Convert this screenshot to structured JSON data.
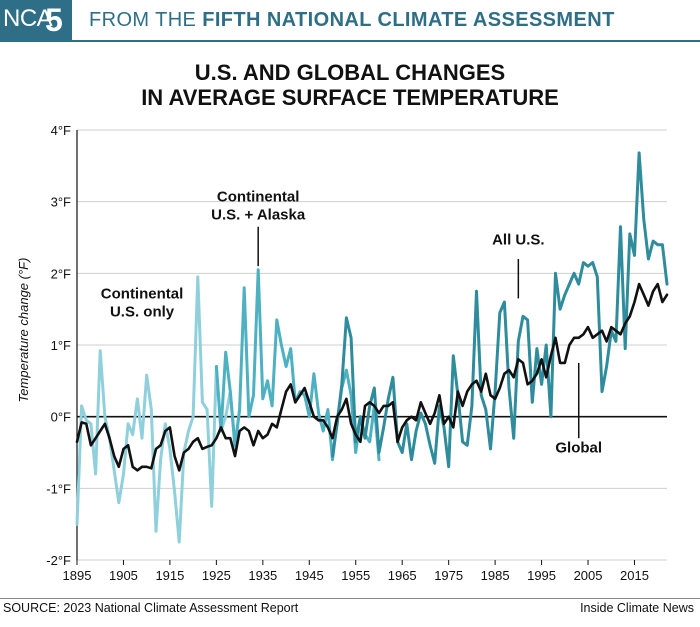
{
  "banner": {
    "nca_text": "NCA",
    "nca_number": "5",
    "prefix": "FROM THE ",
    "emphasis": "FIFTH NATIONAL CLIMATE ASSESSMENT",
    "color": "#2e6f87"
  },
  "title_line1": "U.S. AND GLOBAL CHANGES",
  "title_line2": "IN AVERAGE SURFACE TEMPERATURE",
  "footer": {
    "source": "SOURCE: 2023 National Climate Assessment Report",
    "credit": "Inside Climate News"
  },
  "chart_data": {
    "type": "line",
    "ylabel": "Temperature change (°F)",
    "xlabel": "",
    "xlim": [
      1895,
      2022
    ],
    "ylim": [
      -2,
      4
    ],
    "grid": true,
    "x_ticks": [
      1895,
      1905,
      1915,
      1925,
      1935,
      1945,
      1955,
      1965,
      1975,
      1985,
      1995,
      2005,
      2015
    ],
    "x_tick_labels": [
      "1895",
      "1905",
      "1915",
      "1925",
      "1935",
      "1945",
      "1955",
      "1965",
      "1975",
      "1985",
      "1995",
      "2005",
      "2015"
    ],
    "y_ticks": [
      -2,
      -1,
      0,
      1,
      2,
      3,
      4
    ],
    "y_tick_labels": [
      "-2°F",
      "-1°F",
      "0°F",
      "1°F",
      "2°F",
      "3°F",
      "4°F"
    ],
    "annotations": [
      {
        "text": [
          "Continental",
          "U.S. only"
        ],
        "x": 1909,
        "y": 1.65
      },
      {
        "text": [
          "Continental",
          "U.S. + Alaska"
        ],
        "x": 1934,
        "y": 3.0,
        "pointer_from": 2.65,
        "pointer_to": 2.1
      },
      {
        "text": [
          "All U.S."
        ],
        "x": 1990,
        "y": 2.4,
        "pointer_from": 2.2,
        "pointer_to": 1.65
      },
      {
        "text": [
          "Global"
        ],
        "x": 2003,
        "y": -0.5,
        "pointer_from": 0.75,
        "pointer_to": -0.3
      }
    ],
    "series": [
      {
        "name": "Continental U.S. only",
        "color": "#8fd0dc",
        "x": [
          1895,
          1896,
          1897,
          1898,
          1899,
          1900,
          1901,
          1902,
          1903,
          1904,
          1905,
          1906,
          1907,
          1908,
          1909,
          1910,
          1911,
          1912,
          1913,
          1914,
          1915,
          1916,
          1917,
          1918,
          1919,
          1920,
          1921,
          1922,
          1923,
          1924,
          1925,
          1926,
          1927,
          1928,
          1929,
          1930
        ],
        "values": [
          -1.5,
          0.15,
          -0.05,
          -0.1,
          -0.8,
          0.92,
          0.0,
          -0.3,
          -0.75,
          -1.2,
          -0.8,
          -0.1,
          -0.25,
          0.25,
          -0.3,
          0.58,
          0.1,
          -1.6,
          -0.6,
          -0.1,
          -0.45,
          -1.05,
          -1.75,
          -0.5,
          -0.2,
          0.0,
          1.95,
          0.2,
          0.1,
          -1.25,
          0.7,
          -0.2,
          0.0,
          0.35,
          -0.45,
          0.1
        ]
      },
      {
        "name": "Continental U.S. + Alaska",
        "color": "#4db1c2",
        "x": [
          1925,
          1926,
          1927,
          1928,
          1929,
          1930,
          1931,
          1932,
          1933,
          1934,
          1935,
          1936,
          1937,
          1938,
          1939,
          1940,
          1941,
          1942,
          1943,
          1944,
          1945,
          1946,
          1947,
          1948,
          1949,
          1950,
          1951,
          1952,
          1953,
          1954,
          1955,
          1956,
          1957,
          1958,
          1959,
          1960
        ],
        "values": [
          0.7,
          -0.2,
          0.9,
          0.35,
          -0.4,
          0.1,
          1.8,
          0.0,
          0.3,
          2.05,
          0.25,
          0.5,
          0.15,
          1.35,
          1.0,
          0.7,
          0.95,
          0.2,
          0.35,
          0.3,
          0.0,
          0.6,
          0.05,
          -0.2,
          0.1,
          -0.6,
          -0.05,
          0.4,
          0.65,
          0.3,
          -0.5,
          0.0,
          -0.25,
          -0.35,
          0.15,
          -0.6
        ]
      },
      {
        "name": "All U.S.",
        "color": "#2e8c9c",
        "x": [
          1950,
          1951,
          1952,
          1953,
          1954,
          1955,
          1956,
          1957,
          1958,
          1959,
          1960,
          1961,
          1962,
          1963,
          1964,
          1965,
          1966,
          1967,
          1968,
          1969,
          1970,
          1971,
          1972,
          1973,
          1974,
          1975,
          1976,
          1977,
          1978,
          1979,
          1980,
          1981,
          1982,
          1983,
          1984,
          1985,
          1986,
          1987,
          1988,
          1989,
          1990,
          1991,
          1992,
          1993,
          1994,
          1995,
          1996,
          1997,
          1998,
          1999,
          2000,
          2001,
          2002,
          2003,
          2004,
          2005,
          2006,
          2007,
          2008,
          2009,
          2010,
          2011,
          2012,
          2013,
          2014,
          2015,
          2016,
          2017,
          2018,
          2019,
          2020,
          2021,
          2022
        ],
        "values": [
          -0.55,
          -0.1,
          0.45,
          1.38,
          1.1,
          -0.35,
          0.0,
          -0.3,
          0.15,
          0.4,
          -0.5,
          -0.15,
          0.25,
          0.55,
          -0.35,
          -0.5,
          -0.1,
          -0.6,
          -0.2,
          0.05,
          -0.1,
          -0.4,
          -0.65,
          0.15,
          -0.15,
          -0.7,
          0.85,
          0.3,
          -0.35,
          -0.4,
          0.15,
          1.75,
          0.3,
          0.1,
          -0.45,
          0.35,
          1.45,
          1.6,
          0.4,
          -0.3,
          1.05,
          1.4,
          1.35,
          0.2,
          0.95,
          0.45,
          1.0,
          0.0,
          2.0,
          1.5,
          1.7,
          1.85,
          2.0,
          1.85,
          2.15,
          2.1,
          2.15,
          1.95,
          0.35,
          0.7,
          1.2,
          1.05,
          2.65,
          0.95,
          2.55,
          2.25,
          3.68,
          2.75,
          2.2,
          2.45,
          2.4,
          2.4,
          1.85
        ]
      },
      {
        "name": "Global",
        "color": "#111111",
        "x": [
          1895,
          1896,
          1897,
          1898,
          1899,
          1900,
          1901,
          1902,
          1903,
          1904,
          1905,
          1906,
          1907,
          1908,
          1909,
          1910,
          1911,
          1912,
          1913,
          1914,
          1915,
          1916,
          1917,
          1918,
          1919,
          1920,
          1921,
          1922,
          1923,
          1924,
          1925,
          1926,
          1927,
          1928,
          1929,
          1930,
          1931,
          1932,
          1933,
          1934,
          1935,
          1936,
          1937,
          1938,
          1939,
          1940,
          1941,
          1942,
          1943,
          1944,
          1945,
          1946,
          1947,
          1948,
          1949,
          1950,
          1951,
          1952,
          1953,
          1954,
          1955,
          1956,
          1957,
          1958,
          1959,
          1960,
          1961,
          1962,
          1963,
          1964,
          1965,
          1966,
          1967,
          1968,
          1969,
          1970,
          1971,
          1972,
          1973,
          1974,
          1975,
          1976,
          1977,
          1978,
          1979,
          1980,
          1981,
          1982,
          1983,
          1984,
          1985,
          1986,
          1987,
          1988,
          1989,
          1990,
          1991,
          1992,
          1993,
          1994,
          1995,
          1996,
          1997,
          1998,
          1999,
          2000,
          2001,
          2002,
          2003,
          2004,
          2005,
          2006,
          2007,
          2008,
          2009,
          2010,
          2011,
          2012,
          2013,
          2014,
          2015,
          2016,
          2017,
          2018,
          2019,
          2020,
          2021,
          2022
        ],
        "values": [
          -0.35,
          -0.08,
          -0.1,
          -0.4,
          -0.3,
          -0.2,
          -0.1,
          -0.3,
          -0.55,
          -0.7,
          -0.45,
          -0.4,
          -0.7,
          -0.75,
          -0.7,
          -0.7,
          -0.72,
          -0.45,
          -0.4,
          -0.2,
          -0.15,
          -0.55,
          -0.75,
          -0.5,
          -0.45,
          -0.35,
          -0.3,
          -0.45,
          -0.42,
          -0.4,
          -0.3,
          -0.15,
          -0.3,
          -0.3,
          -0.55,
          -0.2,
          -0.15,
          -0.2,
          -0.4,
          -0.2,
          -0.3,
          -0.25,
          -0.1,
          -0.15,
          0.1,
          0.35,
          0.45,
          0.2,
          0.3,
          0.4,
          0.2,
          0.0,
          -0.05,
          -0.05,
          -0.15,
          -0.3,
          0.0,
          0.1,
          0.25,
          -0.1,
          -0.25,
          -0.35,
          0.15,
          0.2,
          0.15,
          0.05,
          0.15,
          0.15,
          0.2,
          -0.35,
          -0.15,
          -0.05,
          0.0,
          -0.05,
          0.2,
          0.05,
          -0.1,
          0.05,
          0.3,
          -0.1,
          0.0,
          -0.15,
          0.35,
          0.15,
          0.35,
          0.45,
          0.5,
          0.35,
          0.6,
          0.3,
          0.25,
          0.4,
          0.6,
          0.65,
          0.55,
          0.8,
          0.75,
          0.45,
          0.5,
          0.6,
          0.8,
          0.55,
          0.85,
          1.1,
          0.75,
          0.75,
          1.0,
          1.1,
          1.1,
          1.15,
          1.25,
          1.1,
          1.15,
          1.2,
          1.05,
          1.25,
          1.2,
          1.15,
          1.3,
          1.4,
          1.6,
          1.85,
          1.7,
          1.55,
          1.75,
          1.85,
          1.6,
          1.7
        ]
      }
    ]
  }
}
